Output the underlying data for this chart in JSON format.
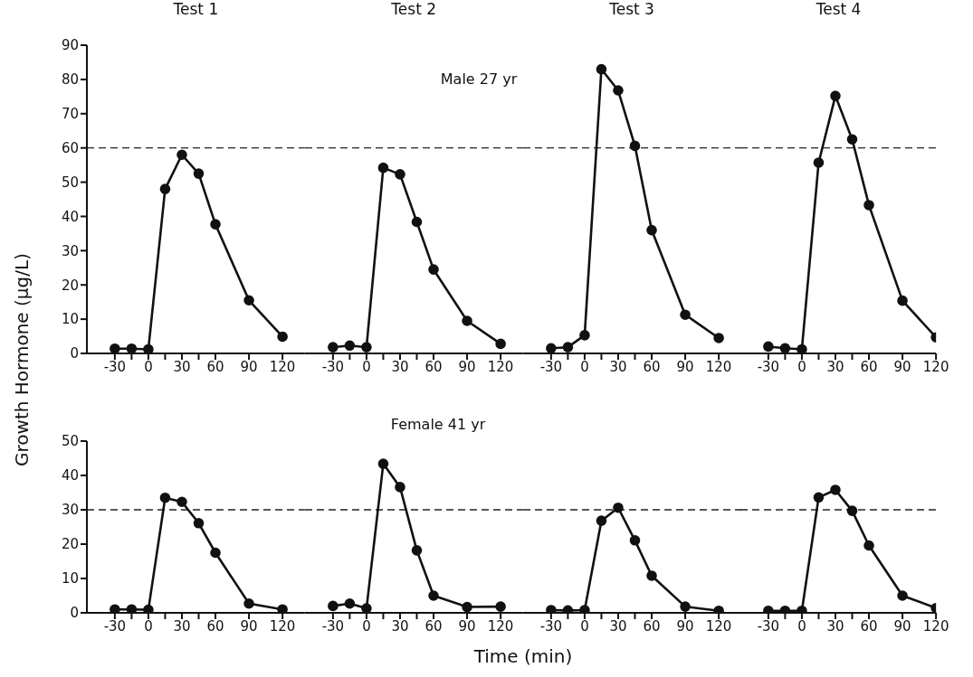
{
  "chart_data": [
    {
      "type": "line",
      "title": "Test 1",
      "ylabel": "Growth Hormone (μg/L)",
      "x": [
        -30,
        -15,
        0,
        15,
        30,
        45,
        60,
        90,
        120
      ],
      "values": [
        1.4,
        1.4,
        1.2,
        48,
        58,
        52.5,
        37.7,
        15.5,
        4.9
      ],
      "color": "#111111",
      "xlim": [
        -55,
        140
      ],
      "xticks": [
        -30,
        {
          "value": -15,
          "label": null
        },
        0,
        {
          "value": 15,
          "label": null
        },
        30,
        {
          "value": 45,
          "label": null
        },
        60,
        90,
        120
      ],
      "ylim": [
        0,
        90
      ],
      "yticks": [
        0,
        10,
        20,
        30,
        40,
        50,
        60,
        70,
        80,
        90
      ],
      "ref_lines": [
        {
          "axis": "y",
          "value": 60,
          "line_style": "dashed"
        }
      ],
      "marker": "circle",
      "line_style": "solid",
      "grid": false
    },
    {
      "type": "line",
      "title": "Test 2",
      "annotations": [
        "Male 27 yr"
      ],
      "x": [
        -30,
        -15,
        0,
        15,
        30,
        45,
        60,
        90,
        120
      ],
      "values": [
        1.8,
        2.3,
        1.8,
        54.2,
        52.3,
        38.4,
        24.5,
        9.5,
        2.8
      ],
      "color": "#111111",
      "xlim": [
        -55,
        140
      ],
      "xticks": [
        -30,
        {
          "value": -15,
          "label": null
        },
        0,
        {
          "value": 15,
          "label": null
        },
        30,
        {
          "value": 45,
          "label": null
        },
        60,
        90,
        120
      ],
      "ylim": [
        0,
        90
      ],
      "tick_labels": "x",
      "ref_lines": [
        {
          "axis": "y",
          "value": 60,
          "line_style": "dashed"
        }
      ],
      "marker": "circle",
      "line_style": "solid",
      "grid": false
    },
    {
      "type": "line",
      "title": "Test 3",
      "x": [
        -30,
        -15,
        0,
        15,
        30,
        45,
        60,
        90,
        120
      ],
      "values": [
        1.5,
        1.8,
        5.3,
        83,
        76.8,
        60.6,
        36,
        11.3,
        4.5
      ],
      "color": "#111111",
      "xlim": [
        -55,
        140
      ],
      "xticks": [
        -30,
        {
          "value": -15,
          "label": null
        },
        0,
        {
          "value": 15,
          "label": null
        },
        30,
        {
          "value": 45,
          "label": null
        },
        60,
        90,
        120
      ],
      "ylim": [
        0,
        90
      ],
      "tick_labels": "x",
      "ref_lines": [
        {
          "axis": "y",
          "value": 60,
          "line_style": "dashed"
        }
      ],
      "marker": "circle",
      "line_style": "solid",
      "grid": false
    },
    {
      "type": "line",
      "title": "Test 4",
      "x": [
        -30,
        -15,
        0,
        15,
        30,
        45,
        60,
        90,
        120
      ],
      "values": [
        2.0,
        1.5,
        1.2,
        55.7,
        75.2,
        62.5,
        43.3,
        15.4,
        4.7
      ],
      "color": "#111111",
      "xlim": [
        -55,
        120
      ],
      "xticks": [
        -30,
        {
          "value": -15,
          "label": null
        },
        0,
        {
          "value": 15,
          "label": null
        },
        30,
        {
          "value": 45,
          "label": null
        },
        60,
        90,
        120
      ],
      "ylim": [
        0,
        90
      ],
      "tick_labels": "x",
      "ref_lines": [
        {
          "axis": "y",
          "value": 60,
          "line_style": "dashed"
        }
      ],
      "marker": "circle",
      "line_style": "solid",
      "grid": false
    },
    {
      "type": "line",
      "x": [
        -30,
        -15,
        0,
        15,
        30,
        45,
        60,
        90,
        120
      ],
      "values": [
        1.0,
        1.0,
        0.9,
        33.5,
        32.3,
        26.1,
        17.5,
        2.7,
        1.0
      ],
      "color": "#111111",
      "xlim": [
        -55,
        140
      ],
      "xticks": [
        -30,
        {
          "value": -15,
          "label": null
        },
        0,
        {
          "value": 15,
          "label": null
        },
        30,
        {
          "value": 45,
          "label": null
        },
        60,
        90,
        120
      ],
      "ylim": [
        0,
        50
      ],
      "yticks": [
        0,
        10,
        20,
        30,
        40,
        50
      ],
      "ref_lines": [
        {
          "axis": "y",
          "value": 30,
          "line_style": "dashed"
        }
      ],
      "marker": "circle",
      "line_style": "solid",
      "grid": false
    },
    {
      "type": "line",
      "xlabel": "Time (min)",
      "annotations": [
        "Female 41 yr"
      ],
      "x": [
        -30,
        -15,
        0,
        15,
        30,
        45,
        60,
        90,
        120
      ],
      "values": [
        2.0,
        2.7,
        1.3,
        43.4,
        36.6,
        18.2,
        5.0,
        1.7,
        1.8
      ],
      "color": "#111111",
      "xlim": [
        -55,
        140
      ],
      "xticks": [
        -30,
        {
          "value": -15,
          "label": null
        },
        0,
        {
          "value": 15,
          "label": null
        },
        30,
        {
          "value": 45,
          "label": null
        },
        60,
        90,
        120
      ],
      "ylim": [
        0,
        50
      ],
      "tick_labels": "x",
      "ref_lines": [
        {
          "axis": "y",
          "value": 30,
          "line_style": "dashed"
        }
      ],
      "marker": "circle",
      "line_style": "solid",
      "grid": false
    },
    {
      "type": "line",
      "x": [
        -30,
        -15,
        0,
        15,
        30,
        45,
        60,
        90,
        120
      ],
      "values": [
        0.8,
        0.7,
        0.8,
        26.8,
        30.6,
        21.1,
        10.8,
        1.8,
        0.6
      ],
      "color": "#111111",
      "xlim": [
        -55,
        140
      ],
      "xticks": [
        -30,
        {
          "value": -15,
          "label": null
        },
        0,
        {
          "value": 15,
          "label": null
        },
        30,
        {
          "value": 45,
          "label": null
        },
        60,
        90,
        120
      ],
      "ylim": [
        0,
        50
      ],
      "tick_labels": "x",
      "ref_lines": [
        {
          "axis": "y",
          "value": 30,
          "line_style": "dashed"
        }
      ],
      "marker": "circle",
      "line_style": "solid",
      "grid": false
    },
    {
      "type": "line",
      "x": [
        -30,
        -15,
        0,
        15,
        30,
        45,
        60,
        90,
        120
      ],
      "values": [
        0.6,
        0.6,
        0.6,
        33.6,
        35.8,
        29.7,
        19.6,
        5.0,
        1.4
      ],
      "color": "#111111",
      "xlim": [
        -55,
        120
      ],
      "xticks": [
        -30,
        {
          "value": -15,
          "label": null
        },
        0,
        {
          "value": 15,
          "label": null
        },
        30,
        {
          "value": 45,
          "label": null
        },
        60,
        90,
        120
      ],
      "ylim": [
        0,
        50
      ],
      "tick_labels": "x",
      "ref_lines": [
        {
          "axis": "y",
          "value": 30,
          "line_style": "dashed"
        }
      ],
      "marker": "circle",
      "line_style": "solid",
      "grid": false
    }
  ]
}
